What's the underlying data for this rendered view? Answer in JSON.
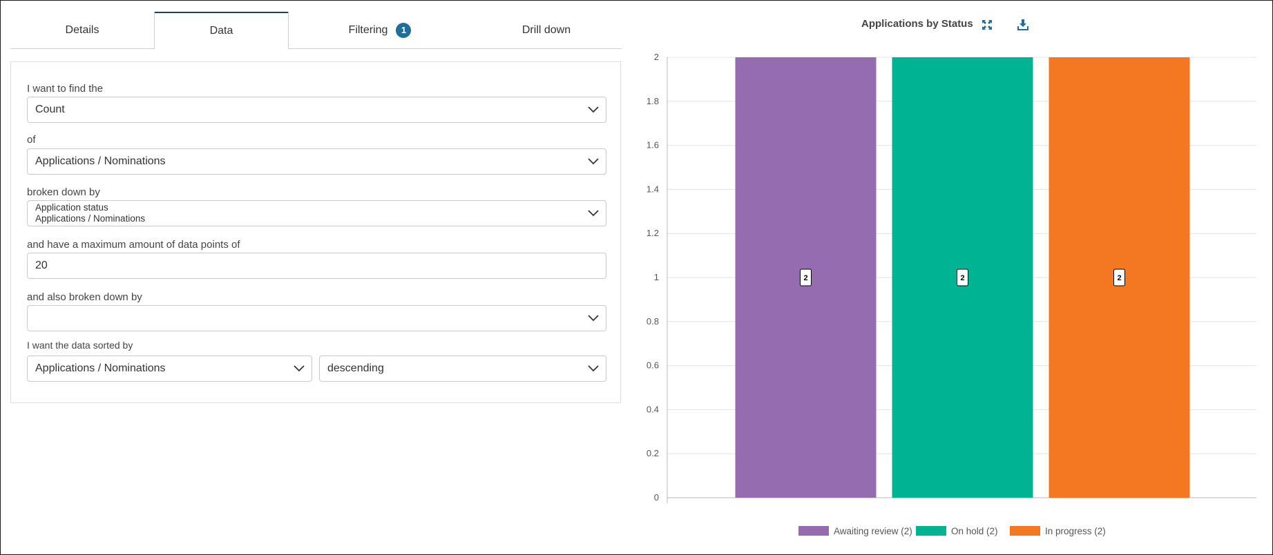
{
  "tabs": [
    {
      "label": "Details"
    },
    {
      "label": "Data"
    },
    {
      "label": "Filtering",
      "badge": "1"
    },
    {
      "label": "Drill down"
    }
  ],
  "form": {
    "find_label": "I want to find the",
    "find_value": "Count",
    "of_label": "of",
    "of_value": "Applications / Nominations",
    "broken_label": "broken down by",
    "broken_value_line1": "Application status",
    "broken_value_line2": "Applications / Nominations",
    "max_label": "and have a maximum amount of data points of",
    "max_value": "20",
    "also_label": "and also broken down by",
    "also_value": "",
    "sorted_label": "I want the data sorted by",
    "sort_field": "Applications / Nominations",
    "sort_order": "descending"
  },
  "chart_header": {
    "title": "Applications by Status",
    "expand_icon": "expand-icon",
    "download_icon": "download-icon",
    "accent": "#1d6e98"
  },
  "chart_data": {
    "type": "bar",
    "title": "Applications by Status",
    "categories": [
      "Awaiting review",
      "On hold",
      "In progress"
    ],
    "values": [
      2,
      2,
      2
    ],
    "colors": [
      "#946caf",
      "#00b493",
      "#f47721"
    ],
    "legend": [
      "Awaiting review (2)",
      "On hold (2)",
      "In progress (2)"
    ],
    "data_labels": [
      "2",
      "2",
      "2"
    ],
    "ylim": [
      0,
      2
    ],
    "yticks": [
      "0",
      "0.2",
      "0.4",
      "0.6",
      "0.8",
      "1",
      "1.2",
      "1.4",
      "1.6",
      "1.8",
      "2"
    ],
    "grid": true,
    "legend_position": "bottom"
  }
}
